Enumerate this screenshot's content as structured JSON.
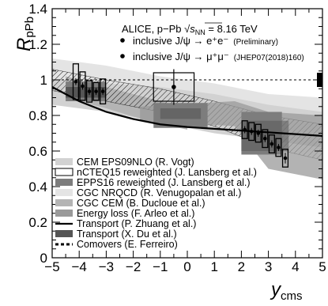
{
  "chart_data": {
    "type": "scatter",
    "ylabel": {
      "main": "R",
      "sub": "pPb"
    },
    "xlabel": {
      "main": "y",
      "sub": "cms"
    },
    "xlim": [
      -5,
      5
    ],
    "ylim": [
      0,
      1.4
    ],
    "x_ticks": [
      "−5",
      "−4",
      "−3",
      "−2",
      "−1",
      "0",
      "1",
      "2",
      "3",
      "4",
      "5"
    ],
    "y_ticks": [
      "0",
      "0.2",
      "0.4",
      "0.6",
      "0.8",
      "1",
      "1.2",
      "1.4"
    ],
    "title_line": "ALICE, p−Pb  √s_NN = 8.16 TeV",
    "title_parts": {
      "pre": "ALICE, p−Pb ",
      "sqrt": "√",
      "s": "s",
      "nn": "NN",
      "post": " = 8.16 TeV"
    },
    "annotations": [
      {
        "text": "inclusive J/ψ → e⁺e⁻",
        "note": "(Preliminary)"
      },
      {
        "text": "inclusive J/ψ → μ⁺μ⁻",
        "note": "(JHEP07(2018)160)"
      }
    ],
    "legend": [
      {
        "label": "CEM EPS09NLO (R. Vogt)",
        "style": "box",
        "color": "#d2d2d2"
      },
      {
        "label": "nCTEQ15 reweighted (J. Lansberg et al.)",
        "style": "open-box",
        "color": "#000000"
      },
      {
        "label": "EPPS16 reweighted (J. Lansberg et al.)",
        "style": "box",
        "color": "#7d7d7d"
      },
      {
        "label": "CGC NRQCD (R. Venugopalan et al.)",
        "style": "box",
        "color": "#e4e4e4"
      },
      {
        "label": "CGC CEM (B. Ducloue et al.)",
        "style": "box",
        "color": "#b4b4b4"
      },
      {
        "label": "Energy loss (F. Arleo et al.)",
        "style": "box",
        "color": "#9a9a9a"
      },
      {
        "label": "Transport (P. Zhuang et al.)",
        "style": "line",
        "color": "#000000"
      },
      {
        "label": "Transport (X. Du et al.)",
        "style": "box",
        "color": "#555555"
      },
      {
        "label": "Comovers (E. Ferreiro)",
        "style": "dashed",
        "color": "#000000"
      }
    ],
    "series": [
      {
        "name": "inclusive J/ψ → e⁺e⁻",
        "x": [
          -0.5
        ],
        "y": [
          0.96
        ],
        "stat_err": [
          0.1
        ],
        "box_halfwidth": [
          0.75
        ],
        "syst_err": [
          0.08
        ]
      },
      {
        "name": "inclusive J/ψ → μ⁺μ⁻",
        "x": [
          -4.125,
          -3.875,
          -3.625,
          -3.375,
          -3.125
        ],
        "y": [
          0.99,
          0.965,
          0.935,
          0.935,
          0.935
        ],
        "stat_err": [
          0.02,
          0.02,
          0.02,
          0.02,
          0.02
        ],
        "syst_err": [
          0.1,
          0.08,
          0.06,
          0.05,
          0.07
        ],
        "x2": [
          2.125,
          2.375,
          2.625,
          2.875,
          3.125,
          3.375,
          3.625
        ],
        "y2": [
          0.72,
          0.71,
          0.7,
          0.67,
          0.64,
          0.62,
          0.56
        ],
        "stat_err2": [
          0.02,
          0.02,
          0.02,
          0.02,
          0.02,
          0.02,
          0.03
        ],
        "syst_err2": [
          0.05,
          0.05,
          0.05,
          0.05,
          0.05,
          0.05,
          0.05
        ]
      }
    ],
    "global_uncertainty": {
      "x": 5,
      "y": 1.0,
      "err": 0.04
    }
  }
}
